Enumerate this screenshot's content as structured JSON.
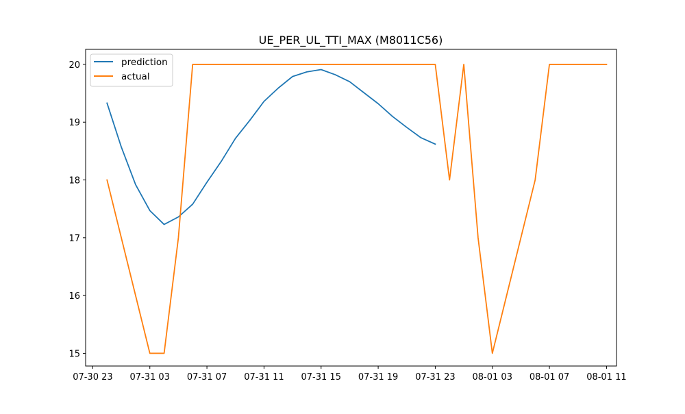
{
  "chart_data": {
    "type": "line",
    "title": "UE_PER_UL_TTI_MAX (M8011C56)",
    "xlabel": "",
    "ylabel": "",
    "x_tick_labels": [
      "07-30 23",
      "07-31 03",
      "07-31 07",
      "07-31 11",
      "07-31 15",
      "07-31 19",
      "07-31 23",
      "08-01 03",
      "08-01 07",
      "08-01 11"
    ],
    "x_tick_hours": [
      -1,
      3,
      7,
      11,
      15,
      19,
      23,
      27,
      31,
      35
    ],
    "y_ticks": [
      15,
      16,
      17,
      18,
      19,
      20
    ],
    "xlim": [
      -1.5,
      35.7
    ],
    "ylim": [
      14.78,
      20.26
    ],
    "legend_position": "upper-left",
    "x_unit_note": "hours relative to 07-31 00:00",
    "series": [
      {
        "name": "prediction",
        "color": "#1f77b4",
        "x": [
          0,
          1,
          2,
          3,
          4,
          5,
          6,
          7,
          8,
          9,
          10,
          11,
          12,
          13,
          14,
          15,
          16,
          17,
          18,
          19,
          20,
          21,
          22,
          23
        ],
        "y": [
          19.33,
          18.57,
          17.92,
          17.47,
          17.23,
          17.36,
          17.58,
          17.96,
          18.32,
          18.72,
          19.03,
          19.36,
          19.59,
          19.79,
          19.87,
          19.91,
          19.82,
          19.7,
          19.51,
          19.32,
          19.1,
          18.91,
          18.73,
          18.62
        ]
      },
      {
        "name": "actual",
        "color": "#ff7f0e",
        "x": [
          0,
          1,
          2,
          3,
          4,
          5,
          6,
          7,
          8,
          9,
          10,
          11,
          12,
          13,
          14,
          15,
          16,
          17,
          18,
          19,
          20,
          21,
          22,
          23,
          24,
          25,
          26,
          27,
          28,
          29,
          30,
          31,
          32,
          33,
          34,
          35
        ],
        "y": [
          18,
          17,
          16,
          15,
          15,
          17,
          20,
          20,
          20,
          20,
          20,
          20,
          20,
          20,
          20,
          20,
          20,
          20,
          20,
          20,
          20,
          20,
          20,
          20,
          18,
          20,
          17,
          15,
          16,
          17,
          18,
          20,
          20,
          20,
          20,
          20
        ]
      }
    ]
  }
}
